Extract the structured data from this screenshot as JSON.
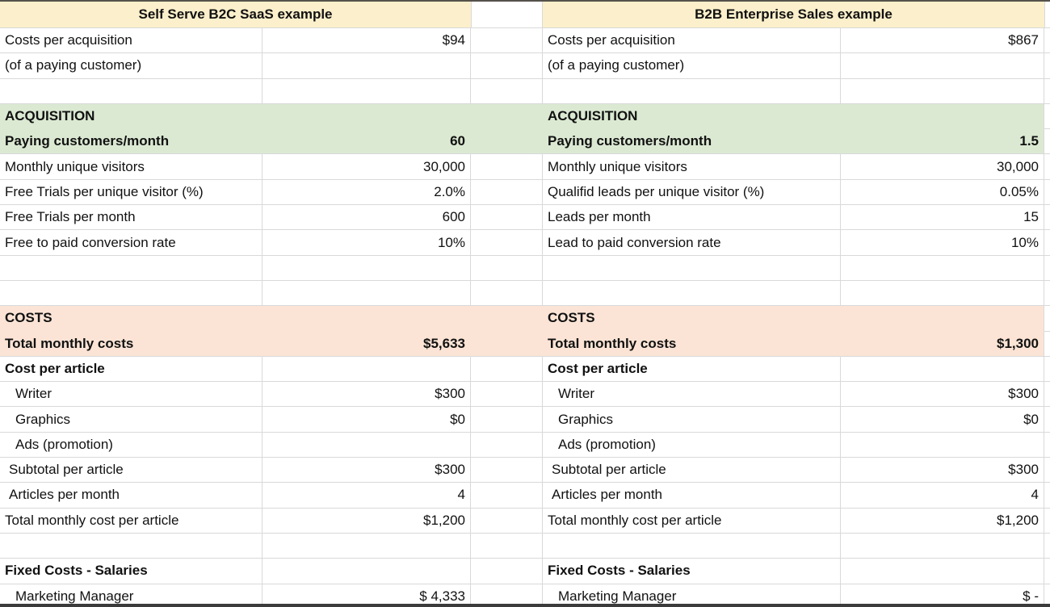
{
  "left_table": {
    "title": "Self Serve B2C SaaS example"
  },
  "right_table": {
    "title": "B2B Enterprise Sales example"
  },
  "colors": {
    "header_yellow": "#FBF0CB",
    "acquisition_green": "#DBE9D2",
    "costs_peach": "#FBE4D5",
    "gridline": "#D9D9D9",
    "top_edge_bar": "#55514B",
    "bottom_edge_bar": "#3B3B3B"
  },
  "rows": [
    {
      "band": "white",
      "left": {
        "label": "Costs per acquisition",
        "value": "$94",
        "bold": false,
        "value_bold": false,
        "indent": 0
      },
      "right": {
        "label": "Costs per acquisition",
        "value": "$867",
        "bold": false,
        "value_bold": false,
        "indent": 0
      }
    },
    {
      "band": "white",
      "left": {
        "label": "(of a paying customer)",
        "value": "",
        "bold": false,
        "value_bold": false,
        "indent": 0
      },
      "right": {
        "label": "(of a paying customer)",
        "value": "",
        "bold": false,
        "value_bold": false,
        "indent": 0
      }
    },
    {
      "band": "white",
      "left": {
        "label": "",
        "value": "",
        "bold": false,
        "value_bold": false,
        "indent": 0
      },
      "right": {
        "label": "",
        "value": "",
        "bold": false,
        "value_bold": false,
        "indent": 0
      }
    },
    {
      "band": "green",
      "band_pos": "start",
      "left": {
        "label": "ACQUISITION",
        "value": "",
        "bold": true,
        "value_bold": false,
        "indent": 0
      },
      "right": {
        "label": "ACQUISITION",
        "value": "",
        "bold": true,
        "value_bold": false,
        "indent": 0
      }
    },
    {
      "band": "green",
      "band_pos": "end",
      "left": {
        "label": "Paying customers/month",
        "value": "60",
        "bold": true,
        "value_bold": true,
        "indent": 0
      },
      "right": {
        "label": "Paying customers/month",
        "value": "1.5",
        "bold": true,
        "value_bold": true,
        "indent": 0
      }
    },
    {
      "band": "white",
      "left": {
        "label": "Monthly unique visitors",
        "value": "30,000",
        "bold": false,
        "value_bold": false,
        "indent": 0
      },
      "right": {
        "label": "Monthly unique visitors",
        "value": "30,000",
        "bold": false,
        "value_bold": false,
        "indent": 0
      }
    },
    {
      "band": "white",
      "left": {
        "label": "Free Trials per unique visitor (%)",
        "value": "2.0%",
        "bold": false,
        "value_bold": false,
        "indent": 0
      },
      "right": {
        "label": "Qualifid leads per unique visitor (%)",
        "value": "0.05%",
        "bold": false,
        "value_bold": false,
        "indent": 0
      }
    },
    {
      "band": "white",
      "left": {
        "label": "Free Trials per month",
        "value": "600",
        "bold": false,
        "value_bold": false,
        "indent": 0
      },
      "right": {
        "label": "Leads per month",
        "value": "15",
        "bold": false,
        "value_bold": false,
        "indent": 0
      }
    },
    {
      "band": "white",
      "left": {
        "label": "Free to paid conversion rate",
        "value": "10%",
        "bold": false,
        "value_bold": false,
        "indent": 0
      },
      "right": {
        "label": "Lead to paid conversion rate",
        "value": "10%",
        "bold": false,
        "value_bold": false,
        "indent": 0
      }
    },
    {
      "band": "white",
      "left": {
        "label": "",
        "value": "",
        "bold": false,
        "value_bold": false,
        "indent": 0
      },
      "right": {
        "label": "",
        "value": "",
        "bold": false,
        "value_bold": false,
        "indent": 0
      }
    },
    {
      "band": "white",
      "left": {
        "label": "",
        "value": "",
        "bold": false,
        "value_bold": false,
        "indent": 0
      },
      "right": {
        "label": "",
        "value": "",
        "bold": false,
        "value_bold": false,
        "indent": 0
      }
    },
    {
      "band": "peach",
      "band_pos": "start",
      "left": {
        "label": "COSTS",
        "value": "",
        "bold": true,
        "value_bold": false,
        "indent": 0
      },
      "right": {
        "label": "COSTS",
        "value": "",
        "bold": true,
        "value_bold": false,
        "indent": 0
      }
    },
    {
      "band": "peach",
      "band_pos": "end",
      "left": {
        "label": "Total monthly costs",
        "value": "$5,633",
        "bold": true,
        "value_bold": true,
        "indent": 0
      },
      "right": {
        "label": "Total monthly costs",
        "value": "$1,300",
        "bold": true,
        "value_bold": true,
        "indent": 0
      }
    },
    {
      "band": "white",
      "left": {
        "label": "Cost per article",
        "value": "",
        "bold": true,
        "value_bold": false,
        "indent": 0
      },
      "right": {
        "label": "Cost per article",
        "value": "",
        "bold": true,
        "value_bold": false,
        "indent": 0
      }
    },
    {
      "band": "white",
      "left": {
        "label": "Writer",
        "value": "$300",
        "bold": false,
        "value_bold": false,
        "indent": 2
      },
      "right": {
        "label": "Writer",
        "value": "$300",
        "bold": false,
        "value_bold": false,
        "indent": 2
      }
    },
    {
      "band": "white",
      "left": {
        "label": "Graphics",
        "value": "$0",
        "bold": false,
        "value_bold": false,
        "indent": 2
      },
      "right": {
        "label": "Graphics",
        "value": "$0",
        "bold": false,
        "value_bold": false,
        "indent": 2
      }
    },
    {
      "band": "white",
      "left": {
        "label": "Ads (promotion)",
        "value": "",
        "bold": false,
        "value_bold": false,
        "indent": 2
      },
      "right": {
        "label": "Ads (promotion)",
        "value": "",
        "bold": false,
        "value_bold": false,
        "indent": 2
      }
    },
    {
      "band": "white",
      "left": {
        "label": "Subtotal per article",
        "value": "$300",
        "bold": false,
        "value_bold": false,
        "indent": 1
      },
      "right": {
        "label": "Subtotal per article",
        "value": "$300",
        "bold": false,
        "value_bold": false,
        "indent": 1
      }
    },
    {
      "band": "white",
      "left": {
        "label": "Articles per month",
        "value": "4",
        "bold": false,
        "value_bold": false,
        "indent": 1
      },
      "right": {
        "label": "Articles per month",
        "value": "4",
        "bold": false,
        "value_bold": false,
        "indent": 1
      }
    },
    {
      "band": "white",
      "left": {
        "label": "Total monthly cost per article",
        "value": "$1,200",
        "bold": false,
        "value_bold": false,
        "indent": 0
      },
      "right": {
        "label": "Total monthly cost per article",
        "value": "$1,200",
        "bold": false,
        "value_bold": false,
        "indent": 0
      }
    },
    {
      "band": "white",
      "left": {
        "label": "",
        "value": "",
        "bold": false,
        "value_bold": false,
        "indent": 0
      },
      "right": {
        "label": "",
        "value": "",
        "bold": false,
        "value_bold": false,
        "indent": 0
      }
    },
    {
      "band": "white",
      "left": {
        "label": "Fixed Costs - Salaries",
        "value": "",
        "bold": true,
        "value_bold": false,
        "indent": 0
      },
      "right": {
        "label": "Fixed Costs - Salaries",
        "value": "",
        "bold": true,
        "value_bold": false,
        "indent": 0
      }
    },
    {
      "band": "white",
      "left": {
        "label": "Marketing Manager",
        "value": "$ 4,333",
        "bold": false,
        "value_bold": false,
        "indent": 2
      },
      "right": {
        "label": "Marketing Manager",
        "value": "$ -",
        "bold": false,
        "value_bold": false,
        "indent": 2
      }
    }
  ]
}
